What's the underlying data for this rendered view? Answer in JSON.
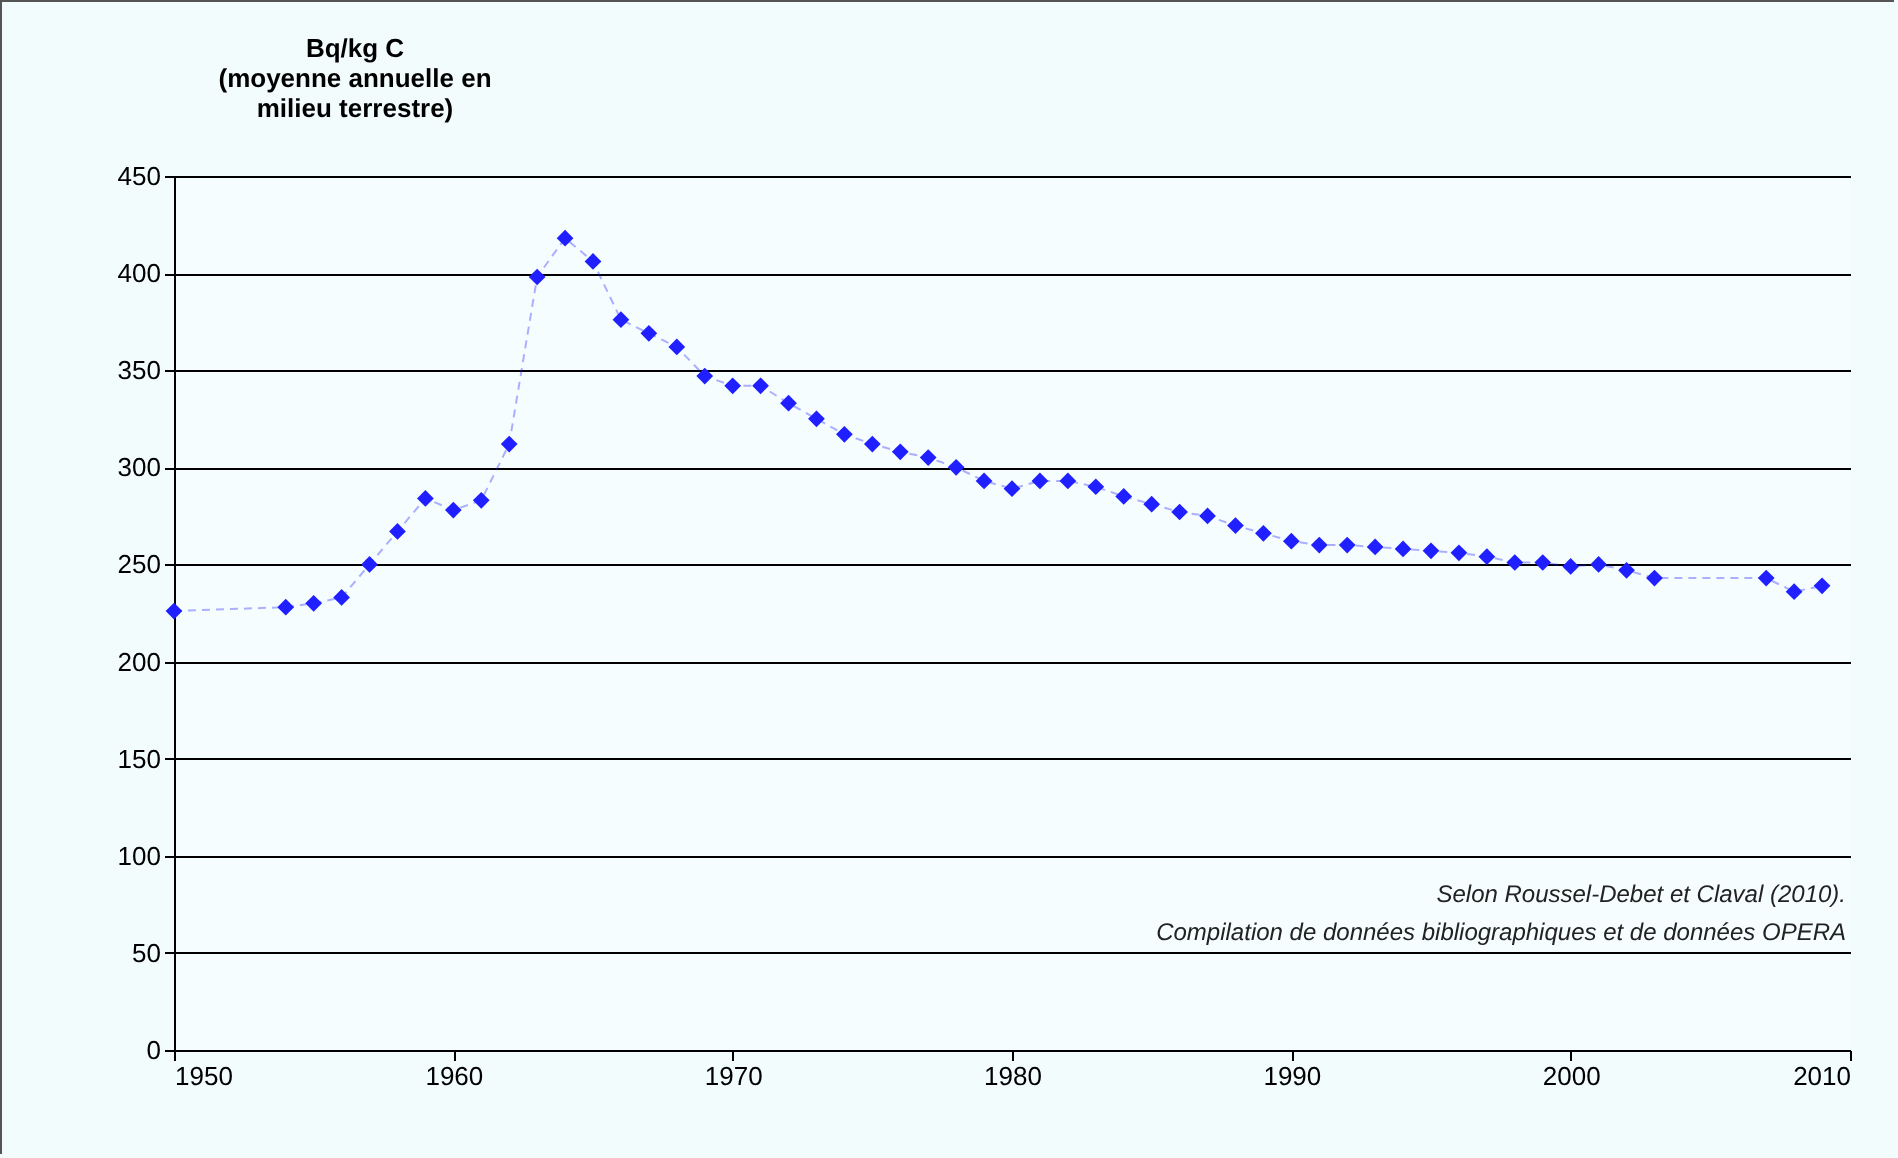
{
  "chart_data": {
    "type": "line",
    "ylabel": "Bq/kg C\n(moyenne annuelle en\nmilieu terrestre)",
    "x": [
      1950,
      1954,
      1955,
      1956,
      1957,
      1958,
      1959,
      1960,
      1961,
      1962,
      1963,
      1964,
      1965,
      1966,
      1967,
      1968,
      1969,
      1970,
      1971,
      1972,
      1973,
      1974,
      1975,
      1976,
      1977,
      1978,
      1979,
      1980,
      1981,
      1982,
      1983,
      1984,
      1985,
      1986,
      1987,
      1988,
      1989,
      1990,
      1991,
      1992,
      1993,
      1994,
      1995,
      1996,
      1997,
      1998,
      1999,
      2000,
      2001,
      2002,
      2003,
      2007,
      2008,
      2009
    ],
    "series": [
      {
        "color": "#1f1fff",
        "line_style": "dashed",
        "values": [
          226,
          228,
          230,
          233,
          250,
          267,
          284,
          278,
          283,
          312,
          398,
          418,
          406,
          376,
          369,
          362,
          347,
          342,
          342,
          333,
          325,
          317,
          312,
          308,
          305,
          300,
          293,
          289,
          293,
          293,
          290,
          285,
          281,
          277,
          275,
          270,
          266,
          262,
          260,
          260,
          259,
          258,
          257,
          256,
          254,
          251,
          251,
          249,
          250,
          247,
          243,
          243,
          236,
          239
        ]
      }
    ],
    "marker": "diamond",
    "xlim": [
      1950,
      2010
    ],
    "xticks": [
      1950,
      1960,
      1970,
      1980,
      1990,
      2000,
      2010
    ],
    "ylim": [
      0,
      450
    ],
    "yticks": [
      0,
      50,
      100,
      150,
      200,
      250,
      300,
      350,
      400,
      450
    ],
    "grid": "y",
    "annotations": [
      "Selon Roussel-Debet  et Claval (2010).",
      "Compilation de données bibliographiques et de données OPERA"
    ]
  }
}
